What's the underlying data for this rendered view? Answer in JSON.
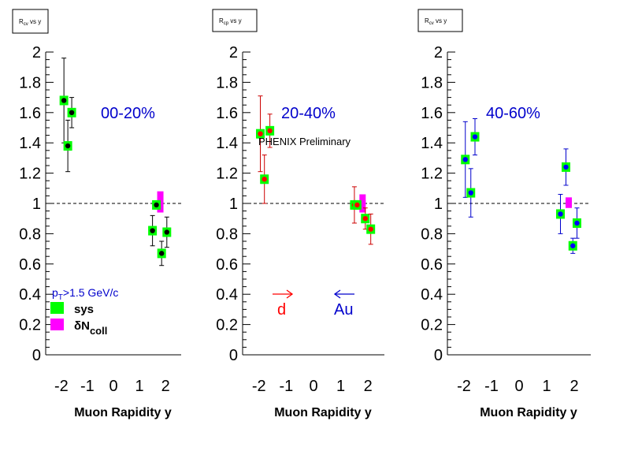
{
  "chart_data": [
    {
      "type": "scatter",
      "panel_title_main": "R",
      "panel_title_sub": "cv",
      "panel_title_rest": " vs y",
      "xlabel": "Muon Rapidity y",
      "ylabel": "",
      "xlim": [
        -2.6,
        2.6
      ],
      "ylim": [
        0,
        2
      ],
      "x_ticks": [
        "-2",
        "-1",
        "0",
        "1",
        "2"
      ],
      "y_ticks": [
        "0",
        "0.2",
        "0.4",
        "0.6",
        "0.8",
        "1",
        "1.2",
        "1.4",
        "1.6",
        "1.8",
        "2"
      ],
      "reference_line": 1,
      "centrality_label": "00-20%",
      "marker_color": "#000000",
      "errorbar_color": "#000000",
      "points": [
        {
          "x": -1.9,
          "y": 1.68,
          "err": 0.28
        },
        {
          "x": -1.75,
          "y": 1.38,
          "err": 0.17
        },
        {
          "x": -1.6,
          "y": 1.6,
          "err": 0.1
        },
        {
          "x": 1.5,
          "y": 0.82,
          "err": 0.1
        },
        {
          "x": 1.65,
          "y": 0.99,
          "err": 0.0
        },
        {
          "x": 1.85,
          "y": 0.67,
          "err": 0.08
        },
        {
          "x": 2.05,
          "y": 0.81,
          "err": 0.1
        }
      ],
      "norm_box": {
        "x": 1.8,
        "low": 0.94,
        "high": 1.08
      },
      "legend": {
        "cut_label": "p",
        "cut_sub": "T",
        "cut_rest": ">1.5 GeV/c",
        "sys_label": "sys",
        "ncoll_prefix": "δN",
        "ncoll_sub": "coll",
        "sys_color": "#00ff00",
        "ncoll_color": "#ff00ff"
      }
    },
    {
      "type": "scatter",
      "panel_title_main": "R",
      "panel_title_sub": "cp",
      "panel_title_rest": " vs y",
      "xlabel": "Muon Rapidity y",
      "ylabel": "",
      "xlim": [
        -2.6,
        2.6
      ],
      "ylim": [
        0,
        2
      ],
      "x_ticks": [
        "-2",
        "-1",
        "0",
        "1",
        "2"
      ],
      "y_ticks": [
        "0",
        "0.2",
        "0.4",
        "0.6",
        "0.8",
        "1",
        "1.2",
        "1.4",
        "1.6",
        "1.8",
        "2"
      ],
      "reference_line": 1,
      "centrality_label": "20-40%",
      "annotation": "PHENIX Preliminary",
      "marker_color": "#ff0000",
      "errorbar_color": "#cc0000",
      "points": [
        {
          "x": -1.95,
          "y": 1.46,
          "err": 0.25
        },
        {
          "x": -1.8,
          "y": 1.16,
          "err": 0.16
        },
        {
          "x": -1.6,
          "y": 1.48,
          "err": 0.11
        },
        {
          "x": 1.5,
          "y": 0.99,
          "err": 0.12
        },
        {
          "x": 1.6,
          "y": 0.99,
          "err": 0.0
        },
        {
          "x": 1.9,
          "y": 0.9,
          "err": 0.07
        },
        {
          "x": 2.1,
          "y": 0.83,
          "err": 0.1
        }
      ],
      "norm_box": {
        "x": 1.8,
        "low": 0.94,
        "high": 1.06
      },
      "arrows": {
        "d_label": "d",
        "au_label": "Au",
        "d_color": "#ff0000",
        "au_color": "#0000cc"
      }
    },
    {
      "type": "scatter",
      "panel_title_main": "R",
      "panel_title_sub": "cv",
      "panel_title_rest": " vs y",
      "xlabel": "Muon Rapidity y",
      "ylabel": "",
      "xlim": [
        -2.6,
        2.6
      ],
      "ylim": [
        0,
        2
      ],
      "x_ticks": [
        "-2",
        "-1",
        "0",
        "1",
        "2"
      ],
      "y_ticks": [
        "0",
        "0.2",
        "0.4",
        "0.6",
        "0.8",
        "1",
        "1.2",
        "1.4",
        "1.6",
        "1.8",
        "2"
      ],
      "reference_line": 1,
      "centrality_label": "40-60%",
      "marker_color": "#0000ff",
      "errorbar_color": "#0000cc",
      "points": [
        {
          "x": -1.95,
          "y": 1.29,
          "err": 0.25
        },
        {
          "x": -1.75,
          "y": 1.07,
          "err": 0.16
        },
        {
          "x": -1.6,
          "y": 1.44,
          "err": 0.12
        },
        {
          "x": 1.5,
          "y": 0.93,
          "err": 0.13
        },
        {
          "x": 1.7,
          "y": 1.24,
          "err": 0.12
        },
        {
          "x": 1.95,
          "y": 0.72,
          "err": 0.05
        },
        {
          "x": 2.1,
          "y": 0.87,
          "err": 0.1
        }
      ],
      "norm_box": {
        "x": 1.8,
        "low": 0.97,
        "high": 1.04
      }
    }
  ]
}
